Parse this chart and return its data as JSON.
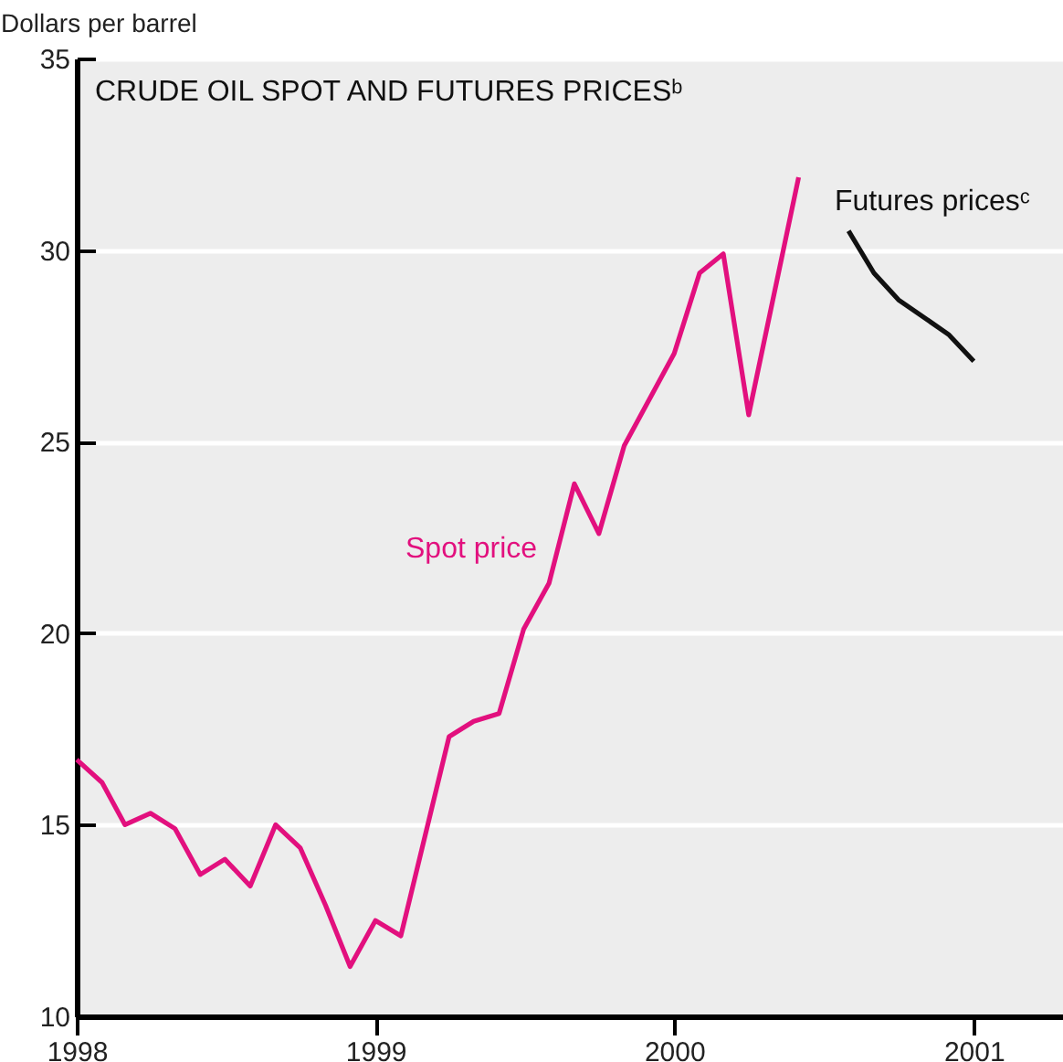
{
  "chart_data": {
    "type": "line",
    "title": "CRUDE OIL SPOT AND FUTURES PRICESᵇ",
    "ylabel": "Dollars per barrel",
    "series": [
      {
        "name": "Spot price",
        "color": "#e2107e",
        "x": [
          "1998-01",
          "1998-02",
          "1998-03",
          "1998-04",
          "1998-05",
          "1998-06",
          "1998-07",
          "1998-08",
          "1998-09",
          "1998-10",
          "1998-11",
          "1998-12",
          "1999-01",
          "1999-02",
          "1999-04",
          "1999-05",
          "1999-06",
          "1999-07",
          "1999-08",
          "1999-09",
          "1999-10",
          "1999-11",
          "2000-01",
          "2000-02",
          "2000-03",
          "2000-04",
          "2000-06"
        ],
        "values": [
          16.7,
          16.1,
          15.0,
          15.3,
          14.9,
          13.7,
          14.1,
          13.4,
          15.0,
          14.4,
          12.9,
          11.3,
          12.5,
          12.1,
          17.3,
          17.7,
          17.9,
          20.1,
          21.3,
          23.9,
          22.6,
          24.9,
          27.3,
          29.4,
          29.9,
          25.7,
          31.9
        ]
      },
      {
        "name": "Futures pricesᶜ",
        "color": "#111111",
        "x": [
          "2000-08",
          "2000-09",
          "2000-10",
          "2000-12",
          "2001-01"
        ],
        "values": [
          30.5,
          29.4,
          28.7,
          27.8,
          27.1
        ]
      }
    ],
    "xlim": [
      "1998-01-01",
      "2001-04-20"
    ],
    "xticks": [
      "1998",
      "1999",
      "2000",
      "2001"
    ],
    "ylim": [
      10,
      35
    ],
    "yticks": [
      10,
      15,
      20,
      25,
      30,
      35
    ],
    "grid": "y",
    "legend": false
  }
}
